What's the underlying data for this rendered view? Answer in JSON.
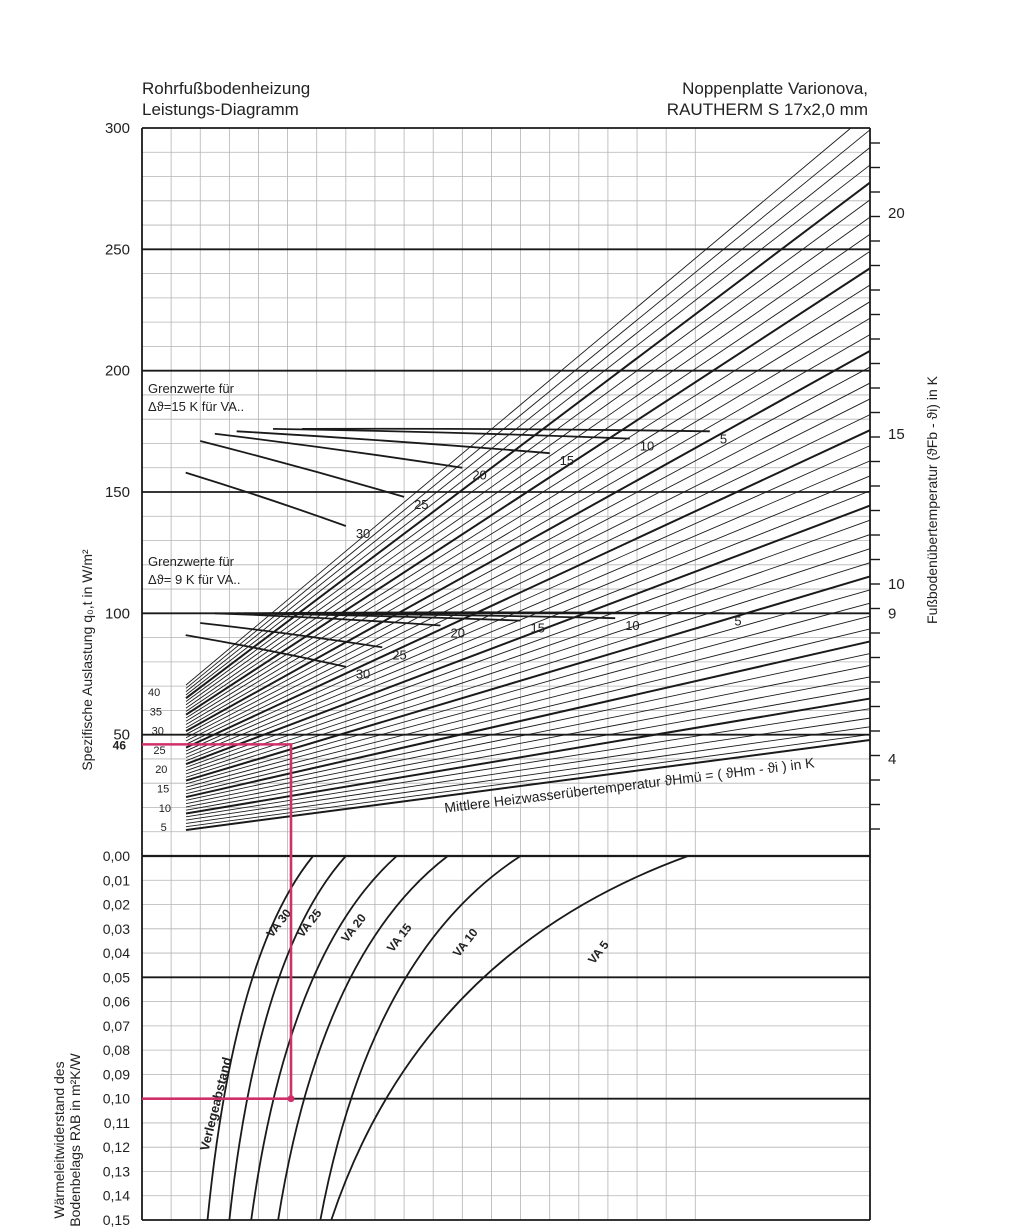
{
  "header": {
    "left_line1": "Rohrfußbodenheizung",
    "left_line2": "Leistungs-Diagramm",
    "right_line1": "Noppenplatte Varionova,",
    "right_line2": "RAUTHERM S 17x2,0 mm"
  },
  "chart_data": {
    "type": "line",
    "title": "Rohrfußbodenheizung Leistungs-Diagramm",
    "subtitle": "Noppenplatte Varionova, RAUTHERM S 17x2,0 mm",
    "grid": true,
    "upper_panel": {
      "ylabel": "Spezifische Auslastung  q₀,t   in W/m²",
      "ylim": [
        0,
        300
      ],
      "y_ticks": [
        "300",
        "250",
        "200",
        "150",
        "100",
        "50"
      ],
      "y_zero_label": "0,00",
      "highlight_tick": "46",
      "right_axis": {
        "label": "Fußbodenübertemperatur (ϑFb - ϑi) in K",
        "ticks": [
          {
            "label": "20",
            "q": 265
          },
          {
            "label": "15",
            "q": 174
          },
          {
            "label": "10",
            "q": 112
          },
          {
            "label": "9",
            "q": 100
          },
          {
            "label": "4",
            "q": 40
          }
        ]
      },
      "curve_label": "Mittlere Heizwasserübertemperatur  ϑHmü = ( ϑHm - ϑi )  in K",
      "temperature_labels": [
        "40",
        "35",
        "30",
        "25",
        "20",
        "15",
        "10",
        "5"
      ],
      "limit_15K": {
        "title_line1": "Grenzwerte  für",
        "title_line2": "Δϑ=15 K für VA..",
        "curves": [
          {
            "name": "5",
            "start_u": 0.22,
            "start_q": 176,
            "end_u": 0.78,
            "end_q": 175
          },
          {
            "name": "10",
            "start_u": 0.18,
            "start_q": 176,
            "end_u": 0.67,
            "end_q": 172
          },
          {
            "name": "15",
            "start_u": 0.13,
            "start_q": 175,
            "end_u": 0.56,
            "end_q": 166
          },
          {
            "name": "20",
            "start_u": 0.1,
            "start_q": 174,
            "end_u": 0.44,
            "end_q": 160
          },
          {
            "name": "25",
            "start_u": 0.08,
            "start_q": 171,
            "end_u": 0.36,
            "end_q": 148
          },
          {
            "name": "30",
            "start_u": 0.06,
            "start_q": 158,
            "end_u": 0.28,
            "end_q": 136
          }
        ]
      },
      "limit_9K": {
        "title_line1": "Grenzwerte  für",
        "title_line2": "Δϑ= 9 K für VA..",
        "curves": [
          {
            "name": "5",
            "start_u": 0.14,
            "start_q": 100,
            "end_u": 0.8,
            "end_q": 100
          },
          {
            "name": "10",
            "start_u": 0.13,
            "start_q": 100,
            "end_u": 0.65,
            "end_q": 98
          },
          {
            "name": "15",
            "start_u": 0.12,
            "start_q": 100,
            "end_u": 0.52,
            "end_q": 97
          },
          {
            "name": "20",
            "start_u": 0.1,
            "start_q": 100,
            "end_u": 0.41,
            "end_q": 95
          },
          {
            "name": "25",
            "start_u": 0.08,
            "start_q": 96,
            "end_u": 0.33,
            "end_q": 86
          },
          {
            "name": "30",
            "start_u": 0.06,
            "start_q": 91,
            "end_u": 0.28,
            "end_q": 78
          }
        ]
      }
    },
    "lower_panel": {
      "ylabel_line1": "Wärmeleitwiderstand des",
      "ylabel_line2": "Bodenbelags RλB in m²K/W",
      "ylim": [
        0,
        0.15
      ],
      "y_ticks": [
        "0,01",
        "0,02",
        "0,03",
        "0,04",
        "0,05",
        "0,06",
        "0,07",
        "0,08",
        "0,09",
        "0,10",
        "0,11",
        "0,12",
        "0,13",
        "0,14",
        "0,15"
      ],
      "caption": "Verlegeabstand",
      "series": [
        {
          "name": "VA 30",
          "label_r": 0.018,
          "x_at_r0": 0.235,
          "x_at_r015": 0.09
        },
        {
          "name": "VA 25",
          "label_r": 0.018,
          "x_at_r0": 0.28,
          "x_at_r015": 0.12
        },
        {
          "name": "VA 20",
          "label_r": 0.02,
          "x_at_r0": 0.35,
          "x_at_r015": 0.15
        },
        {
          "name": "VA 15",
          "label_r": 0.024,
          "x_at_r0": 0.42,
          "x_at_r015": 0.187
        },
        {
          "name": "VA 10",
          "label_r": 0.026,
          "x_at_r0": 0.52,
          "x_at_r015": 0.245
        },
        {
          "name": "VA 5",
          "label_r": 0.03,
          "x_at_r0": 0.75,
          "x_at_r015": 0.26
        }
      ]
    },
    "example": {
      "q": 46,
      "rb": 0.1,
      "va": "VA 30",
      "color": "#d0306a"
    }
  }
}
